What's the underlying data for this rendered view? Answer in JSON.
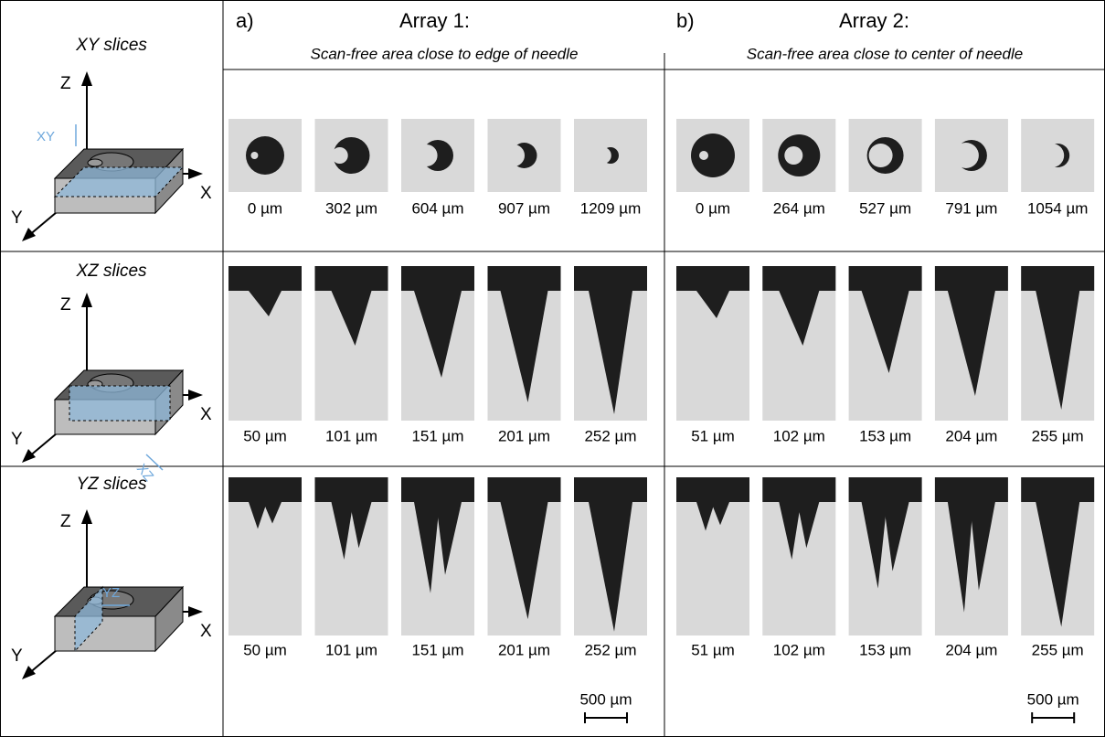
{
  "row_headers": [
    "XY slices",
    "XZ slices",
    "YZ slices"
  ],
  "axis_labels": {
    "z": "Z",
    "x": "X",
    "y": "Y"
  },
  "plane_labels": [
    "XY",
    "XZ",
    "YZ"
  ],
  "arrays": [
    {
      "letter": "a)",
      "title": "Array 1:",
      "subtitle": "Scan-free area close to edge of needle",
      "xy": [
        "0 µm",
        "302 µm",
        "604 µm",
        "907 µm",
        "1209 µm"
      ],
      "xz": [
        "50 µm",
        "101 µm",
        "151 µm",
        "201 µm",
        "252 µm"
      ],
      "yz": [
        "50 µm",
        "101 µm",
        "151 µm",
        "201 µm",
        "252 µm"
      ],
      "scale_bar": "500 µm"
    },
    {
      "letter": "b)",
      "title": "Array 2:",
      "subtitle": "Scan-free area close to center of needle",
      "xy": [
        "0 µm",
        "264 µm",
        "527 µm",
        "791 µm",
        "1054 µm"
      ],
      "xz": [
        "51 µm",
        "102 µm",
        "153 µm",
        "204 µm",
        "255 µm"
      ],
      "yz": [
        "51 µm",
        "102 µm",
        "153 µm",
        "204 µm",
        "255 µm"
      ],
      "scale_bar": "500 µm"
    }
  ]
}
